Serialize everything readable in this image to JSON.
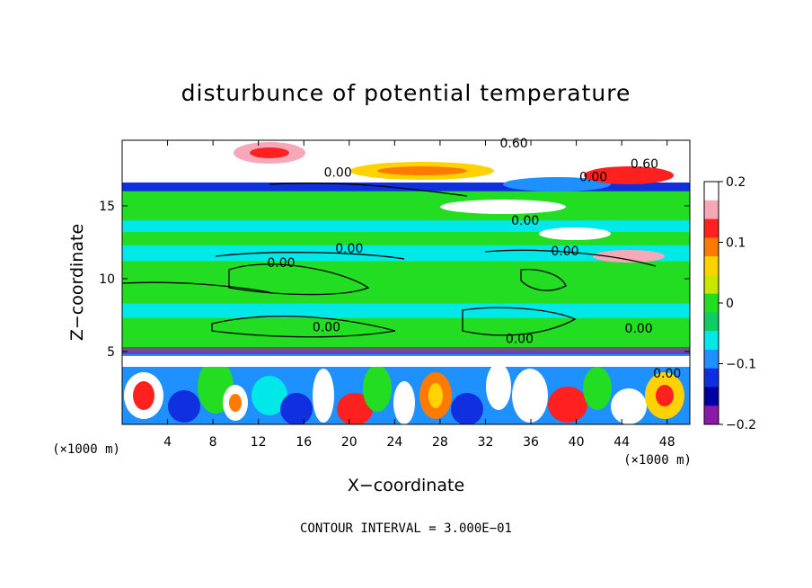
{
  "chart_data": {
    "type": "heatmap",
    "title": "disturbunce of potential temperature",
    "xlabel": "X−coordinate",
    "ylabel": "Z−coordinate",
    "x_unit_left": "(×1000 m)",
    "x_unit_right": "(×1000 m)",
    "xlim": [
      0,
      50
    ],
    "ylim": [
      0,
      19.5
    ],
    "x_ticks": [
      4,
      8,
      12,
      16,
      20,
      24,
      28,
      32,
      36,
      40,
      44,
      48
    ],
    "y_ticks": [
      5,
      10,
      15
    ],
    "colorbar": {
      "range": [
        -0.2,
        0.2
      ],
      "ticks": [
        {
          "value": 0.2,
          "label": "0.2"
        },
        {
          "value": 0.1,
          "label": "0.1"
        },
        {
          "value": 0,
          "label": "0"
        },
        {
          "value": -0.1,
          "label": "−0.1"
        },
        {
          "value": -0.2,
          "label": "−0.2"
        }
      ],
      "colors": [
        "#ffffff",
        "#f7a8b8",
        "#ff2020",
        "#ff7a00",
        "#ffd200",
        "#c8e600",
        "#22dd22",
        "#11cc66",
        "#00e8e8",
        "#1e90ff",
        "#1030e0",
        "#0000a0",
        "#8a1aa8"
      ]
    },
    "bands": [
      {
        "z0": 0.0,
        "z1": 2.2,
        "value": "mixed",
        "color": "#22dd22"
      },
      {
        "z0": 4.0,
        "z1": 5.0,
        "value": -0.12,
        "color": "#1e90ff"
      },
      {
        "z0": 5.0,
        "z1": 7.3,
        "value": 0.0,
        "color": "#22dd22"
      },
      {
        "z0": 7.3,
        "z1": 8.3,
        "value": -0.05,
        "color": "#00e8e8"
      },
      {
        "z0": 8.3,
        "z1": 11.2,
        "value": 0.0,
        "color": "#22dd22"
      },
      {
        "z0": 11.2,
        "z1": 12.3,
        "value": -0.05,
        "color": "#00e8e8"
      },
      {
        "z0": 12.3,
        "z1": 13.2,
        "value": 0.0,
        "color": "#22dd22"
      },
      {
        "z0": 13.2,
        "z1": 14.0,
        "value": -0.05,
        "color": "#00e8e8"
      },
      {
        "z0": 14.0,
        "z1": 16.0,
        "value": 0.0,
        "color": "#22dd22"
      },
      {
        "z0": 16.0,
        "z1": 16.6,
        "value": -0.15,
        "color": "#1030e0"
      },
      {
        "z0": 16.6,
        "z1": 19.5,
        "value": 0.2,
        "color": "#ffffff"
      }
    ],
    "contour_labels": [
      {
        "x": 14.0,
        "z": 10.8,
        "text": "0.00"
      },
      {
        "x": 20.0,
        "z": 11.8,
        "text": "0.00"
      },
      {
        "x": 18.0,
        "z": 6.4,
        "text": "0.00"
      },
      {
        "x": 35.0,
        "z": 5.6,
        "text": "0.00"
      },
      {
        "x": 39.0,
        "z": 11.6,
        "text": "0.00"
      },
      {
        "x": 35.5,
        "z": 13.7,
        "text": "0.00"
      },
      {
        "x": 45.5,
        "z": 6.3,
        "text": "0.00"
      },
      {
        "x": 48.0,
        "z": 3.2,
        "text": "0.00"
      },
      {
        "x": 19.0,
        "z": 17.0,
        "text": "0.00"
      },
      {
        "x": 41.5,
        "z": 16.7,
        "text": "0.00"
      },
      {
        "x": 34.5,
        "z": 19.0,
        "text": "0.60"
      },
      {
        "x": 46.0,
        "z": 17.6,
        "text": "0.60"
      }
    ]
  },
  "footer": {
    "contour_interval": "CONTOUR INTERVAL = 3.000E−01"
  }
}
